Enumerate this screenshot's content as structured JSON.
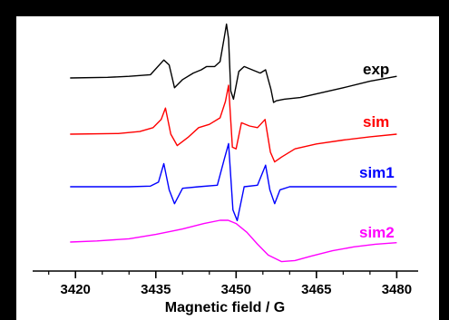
{
  "chart_data": {
    "type": "line",
    "title": "",
    "xlabel": "Magnetic field / G",
    "ylabel": "",
    "xlim": [
      3412,
      3484
    ],
    "x_ticks": [
      "3420",
      "3435",
      "3450",
      "3465",
      "3480"
    ],
    "grid": false,
    "legend": "inline labels to the right of each trace",
    "y_axis": "stacked offset traces without y ticks",
    "series": [
      {
        "name": "exp",
        "color": "#000000",
        "x": [
          3419,
          3426,
          3430,
          3434,
          3436.5,
          3437.5,
          3438.5,
          3440,
          3442,
          3443.5,
          3444.5,
          3446,
          3447,
          3447.8,
          3448.2,
          3448.6,
          3449,
          3449.5,
          3450.5,
          3451.5,
          3453,
          3454.5,
          3455.5,
          3456.5,
          3457,
          3457.5,
          3459,
          3462,
          3466,
          3470,
          3475,
          3480
        ],
        "y": [
          0.0,
          0.02,
          0.05,
          0.1,
          0.55,
          0.4,
          -0.3,
          -0.05,
          0.15,
          0.25,
          0.35,
          0.35,
          0.5,
          1.25,
          1.65,
          1.2,
          -0.4,
          -0.65,
          0.2,
          0.35,
          0.25,
          0.15,
          0.25,
          -0.35,
          -0.75,
          -0.7,
          -0.65,
          -0.6,
          -0.45,
          -0.3,
          -0.1,
          0.05
        ]
      },
      {
        "name": "sim",
        "color": "#ff0000",
        "x": [
          3419,
          3428,
          3432,
          3434.5,
          3436,
          3436.8,
          3437.8,
          3439,
          3441,
          3443,
          3445,
          3447,
          3448,
          3448.6,
          3449.3,
          3450,
          3451,
          3452.5,
          3454,
          3455.4,
          3456.4,
          3457.2,
          3458.5,
          3461,
          3465,
          3470,
          3475,
          3480
        ],
        "y": [
          0.0,
          0.02,
          0.08,
          0.2,
          0.45,
          0.8,
          0.0,
          -0.35,
          -0.1,
          0.2,
          0.3,
          0.5,
          1.0,
          1.5,
          -0.4,
          -0.45,
          0.35,
          0.25,
          0.2,
          0.45,
          -0.55,
          -0.85,
          -0.7,
          -0.45,
          -0.3,
          -0.18,
          -0.08,
          0.0
        ]
      },
      {
        "name": "sim1",
        "color": "#0000ff",
        "x": [
          3419,
          3430,
          3434,
          3435.5,
          3436.5,
          3437.5,
          3438.5,
          3440,
          3443,
          3446.5,
          3447.8,
          3448.6,
          3449.4,
          3450.2,
          3451.5,
          3454,
          3455.5,
          3456.3,
          3457.2,
          3458.2,
          3460,
          3465,
          3470,
          3480
        ],
        "y": [
          0.0,
          0.0,
          0.02,
          0.15,
          0.75,
          -0.1,
          -0.55,
          -0.05,
          0.0,
          0.05,
          0.9,
          1.4,
          -0.75,
          -1.1,
          0.0,
          0.05,
          0.7,
          -0.1,
          -0.55,
          -0.1,
          0.0,
          0.0,
          0.0,
          0.0
        ]
      },
      {
        "name": "sim2",
        "color": "#ff00ff",
        "x": [
          3419,
          3424,
          3430,
          3435,
          3440,
          3444,
          3447,
          3448.5,
          3450,
          3452,
          3454,
          3456,
          3458.5,
          3461,
          3464,
          3468,
          3472,
          3476,
          3480
        ],
        "y": [
          0.0,
          0.05,
          0.15,
          0.35,
          0.6,
          0.85,
          1.0,
          1.0,
          0.85,
          0.45,
          -0.1,
          -0.6,
          -0.9,
          -0.85,
          -0.65,
          -0.4,
          -0.22,
          -0.1,
          -0.03
        ]
      }
    ]
  }
}
